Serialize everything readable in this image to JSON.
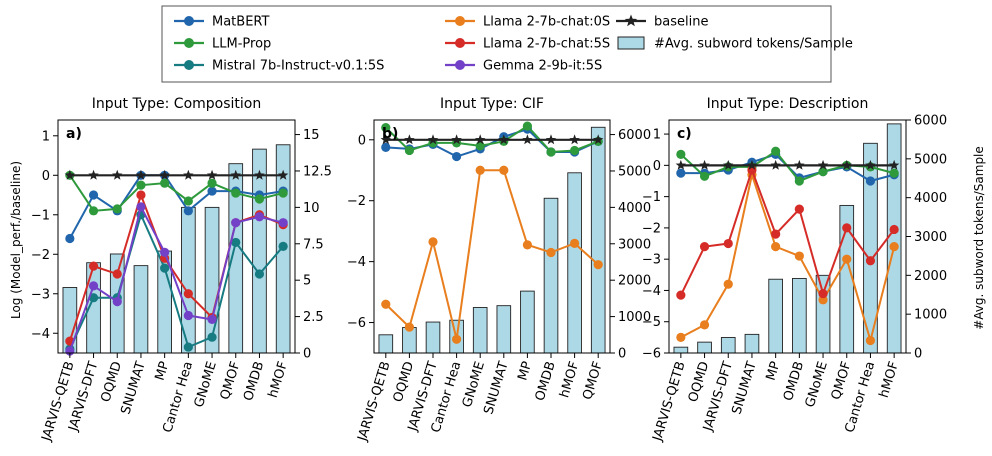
{
  "colors": {
    "MatBERT": "#2166ac",
    "LLM-Prop": "#2e9a3c",
    "Mistral": "#177b82",
    "Llama0S": "#e87e1d",
    "Llama5S": "#d52c28",
    "Gemma": "#7341c8",
    "baseline": "#222222",
    "bar_fill": "#add8e6",
    "bar_edge": "#222222"
  },
  "legend": {
    "items": [
      {
        "key": "MatBERT",
        "label": "MatBERT",
        "kind": "line"
      },
      {
        "key": "LLM-Prop",
        "label": "LLM-Prop",
        "kind": "line"
      },
      {
        "key": "Mistral",
        "label": "Mistral 7b-Instruct-v0.1:5S",
        "kind": "line"
      },
      {
        "key": "Llama0S",
        "label": "Llama 2-7b-chat:0S",
        "kind": "line"
      },
      {
        "key": "Llama5S",
        "label": "Llama 2-7b-chat:5S",
        "kind": "line"
      },
      {
        "key": "Gemma",
        "label": "Gemma 2-9b-it:5S",
        "kind": "line"
      },
      {
        "key": "baseline",
        "label": "baseline",
        "kind": "star"
      },
      {
        "key": "bars",
        "label": "#Avg. subword tokens/Sample",
        "kind": "bar"
      }
    ]
  },
  "axes": {
    "ylabel_left": "Log (Model_perf./baseline)",
    "ylabel_right": "#Avg. subword tokens/Sample"
  },
  "chart_data": [
    {
      "type": "bar+line",
      "panel_label": "a)",
      "title": "Input Type: Composition",
      "categories": [
        "JARVIS-QETB",
        "JARVIS-DFT",
        "OQMD",
        "SNUMAT",
        "MP",
        "Cantor Hea",
        "GNoME",
        "QMOF",
        "OMDB",
        "hMOF"
      ],
      "ylim_left": [
        -4.5,
        1.4
      ],
      "yticks_left": [
        -4,
        -3,
        -2,
        -1,
        0,
        1
      ],
      "ylim_right": [
        0,
        16
      ],
      "yticks_right": [
        0,
        2.5,
        5,
        7.5,
        10,
        12.5,
        15
      ],
      "ytick_right_labels": [
        "0",
        "2.5",
        "5",
        "7.5",
        "10",
        "12.5",
        "15"
      ],
      "bars": {
        "name": "#Avg. subword tokens/Sample",
        "values": [
          4.5,
          6.2,
          6.8,
          6.0,
          7.0,
          10.0,
          10.0,
          13.0,
          14.0,
          14.3
        ]
      },
      "series": [
        {
          "key": "MatBERT",
          "name": "MatBERT",
          "values": [
            -1.6,
            -0.5,
            -0.9,
            0.0,
            0.0,
            -0.9,
            -0.4,
            -0.4,
            -0.5,
            -0.4
          ]
        },
        {
          "key": "LLM-Prop",
          "name": "LLM-Prop",
          "values": [
            0.0,
            -0.9,
            -0.85,
            -0.25,
            -0.2,
            -0.65,
            -0.2,
            -0.45,
            -0.6,
            -0.45
          ]
        },
        {
          "key": "Mistral",
          "name": "Mistral 7b-Instruct-v0.1:5S",
          "values": [
            -4.4,
            -3.1,
            -3.1,
            -1.0,
            -2.35,
            -4.35,
            -4.1,
            -1.7,
            -2.5,
            -1.8
          ]
        },
        {
          "key": "Llama0S",
          "name": "Llama 2-7b-chat:0S",
          "values": [
            null,
            null,
            null,
            null,
            null,
            null,
            null,
            null,
            null,
            null
          ]
        },
        {
          "key": "Llama5S",
          "name": "Llama 2-7b-chat:5S",
          "values": [
            -4.2,
            -2.3,
            -2.5,
            -0.5,
            -2.1,
            -3.0,
            -3.6,
            -1.2,
            -1.0,
            -1.25
          ]
        },
        {
          "key": "Gemma",
          "name": "Gemma 2-9b-it:5S",
          "values": [
            -4.45,
            -2.8,
            -3.2,
            -0.8,
            -1.95,
            -3.55,
            -3.65,
            -1.2,
            -1.05,
            -1.2
          ]
        },
        {
          "key": "baseline",
          "name": "baseline",
          "values": [
            0,
            0,
            0,
            0,
            0,
            0,
            0,
            0,
            0,
            0
          ]
        }
      ]
    },
    {
      "type": "bar+line",
      "panel_label": "b)",
      "title": "Input Type: CIF",
      "categories": [
        "JARVIS-QETB",
        "OQMD",
        "JARVIS-DFT",
        "Cantor Hea",
        "GNoME",
        "SNUMAT",
        "MP",
        "OMDB",
        "hMOF",
        "QMOF"
      ],
      "ylim_left": [
        -7.0,
        0.65
      ],
      "yticks_left": [
        -6,
        -4,
        -2,
        0
      ],
      "ylim_right": [
        0,
        6400
      ],
      "yticks_right": [
        0,
        1000,
        2000,
        3000,
        4000,
        5000,
        6000
      ],
      "ytick_right_labels": [
        "0",
        "1000",
        "2000",
        "3000",
        "4000",
        "5000",
        "6000"
      ],
      "bars": {
        "name": "#Avg. subword tokens/Sample",
        "values": [
          500,
          700,
          850,
          900,
          1250,
          1300,
          1700,
          4250,
          4950,
          6200
        ]
      },
      "series": [
        {
          "key": "MatBERT",
          "name": "MatBERT",
          "values": [
            -0.25,
            -0.3,
            -0.15,
            -0.55,
            -0.3,
            0.1,
            0.35,
            -0.4,
            -0.4,
            -0.05
          ]
        },
        {
          "key": "LLM-Prop",
          "name": "LLM-Prop",
          "values": [
            0.4,
            -0.35,
            -0.1,
            -0.1,
            -0.2,
            -0.05,
            0.45,
            -0.4,
            -0.35,
            -0.05
          ]
        },
        {
          "key": "Mistral",
          "name": "Mistral 7b-Instruct-v0.1:5S",
          "values": [
            null,
            null,
            null,
            null,
            null,
            null,
            null,
            null,
            null,
            null
          ]
        },
        {
          "key": "Llama0S",
          "name": "Llama 2-7b-chat:0S",
          "values": [
            -5.4,
            -6.15,
            -3.35,
            -6.55,
            -1.0,
            -1.0,
            -3.45,
            -3.7,
            -3.4,
            -4.1
          ]
        },
        {
          "key": "Llama5S",
          "name": "Llama 2-7b-chat:5S",
          "values": [
            null,
            null,
            null,
            null,
            null,
            null,
            null,
            null,
            null,
            null
          ]
        },
        {
          "key": "Gemma",
          "name": "Gemma 2-9b-it:5S",
          "values": [
            null,
            null,
            null,
            null,
            null,
            null,
            null,
            null,
            null,
            null
          ]
        },
        {
          "key": "baseline",
          "name": "baseline",
          "values": [
            0,
            0,
            0,
            0,
            0,
            0,
            0,
            0,
            0,
            0
          ]
        }
      ]
    },
    {
      "type": "bar+line",
      "panel_label": "c)",
      "title": "Input Type: Description",
      "categories": [
        "JARVIS-QETB",
        "OQMD",
        "JARVIS-DFT",
        "SNUMAT",
        "MP",
        "OMDB",
        "GNoME",
        "QMOF",
        "Cantor Hea",
        "hMOF"
      ],
      "ylim_left": [
        -6.0,
        1.45
      ],
      "yticks_left": [
        -6,
        -5,
        -4,
        -3,
        -2,
        -1,
        0,
        1
      ],
      "ylim_right": [
        0,
        6000
      ],
      "yticks_right": [
        0,
        1000,
        2000,
        3000,
        4000,
        5000,
        6000
      ],
      "ytick_right_labels": [
        "0",
        "1000",
        "2000",
        "3000",
        "4000",
        "5000",
        "6000"
      ],
      "bars": {
        "name": "#Avg. subword tokens/Sample",
        "values": [
          150,
          280,
          400,
          480,
          1900,
          1920,
          2000,
          3800,
          5400,
          5900
        ]
      },
      "series": [
        {
          "key": "MatBERT",
          "name": "MatBERT",
          "values": [
            -0.25,
            -0.25,
            -0.15,
            0.1,
            0.35,
            -0.4,
            -0.2,
            -0.05,
            -0.5,
            -0.3
          ]
        },
        {
          "key": "LLM-Prop",
          "name": "LLM-Prop",
          "values": [
            0.35,
            -0.35,
            -0.05,
            -0.05,
            0.45,
            -0.5,
            -0.2,
            0.0,
            -0.05,
            -0.25
          ]
        },
        {
          "key": "Mistral",
          "name": "Mistral 7b-Instruct-v0.1:5S",
          "values": [
            null,
            null,
            null,
            null,
            null,
            null,
            null,
            null,
            null,
            null
          ]
        },
        {
          "key": "Llama0S",
          "name": "Llama 2-7b-chat:0S",
          "values": [
            -5.5,
            -5.1,
            -3.8,
            -0.3,
            -2.6,
            -2.9,
            -4.3,
            -3.0,
            -5.6,
            -2.6
          ]
        },
        {
          "key": "Llama5S",
          "name": "Llama 2-7b-chat:5S",
          "values": [
            -4.15,
            -2.6,
            -2.5,
            -0.15,
            -2.2,
            -1.4,
            -4.1,
            -2.0,
            -3.05,
            -2.05
          ]
        },
        {
          "key": "Gemma",
          "name": "Gemma 2-9b-it:5S",
          "values": [
            null,
            null,
            null,
            null,
            null,
            null,
            null,
            null,
            null,
            null
          ]
        },
        {
          "key": "baseline",
          "name": "baseline",
          "values": [
            0,
            0,
            0,
            0,
            0,
            0,
            0,
            0,
            0,
            0
          ]
        }
      ]
    }
  ]
}
